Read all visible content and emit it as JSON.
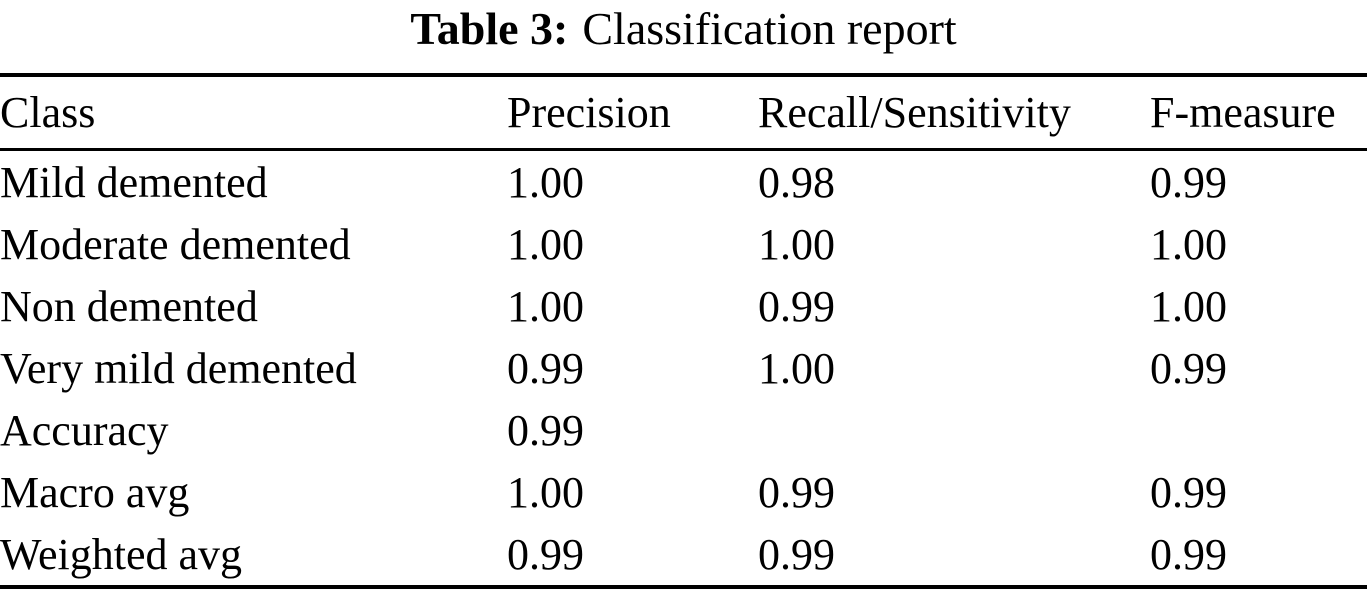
{
  "caption": {
    "label": "Table 3:",
    "text": "Classification report"
  },
  "columns": [
    "Class",
    "Precision",
    "Recall/Sensitivity",
    "F-measure"
  ],
  "rows": [
    {
      "class": "Mild demented",
      "precision": "1.00",
      "recall": "0.98",
      "f_measure": "0.99"
    },
    {
      "class": "Moderate demented",
      "precision": "1.00",
      "recall": "1.00",
      "f_measure": "1.00"
    },
    {
      "class": "Non demented",
      "precision": "1.00",
      "recall": "0.99",
      "f_measure": "1.00"
    },
    {
      "class": "Very mild demented",
      "precision": "0.99",
      "recall": "1.00",
      "f_measure": "0.99"
    },
    {
      "class": "Accuracy",
      "precision": "0.99",
      "recall": "",
      "f_measure": ""
    },
    {
      "class": "Macro avg",
      "precision": "1.00",
      "recall": "0.99",
      "f_measure": "0.99"
    },
    {
      "class": "Weighted avg",
      "precision": "0.99",
      "recall": "0.99",
      "f_measure": "0.99"
    }
  ],
  "colors": {
    "text": "#000000",
    "background": "#ffffff",
    "rule": "#000000"
  }
}
